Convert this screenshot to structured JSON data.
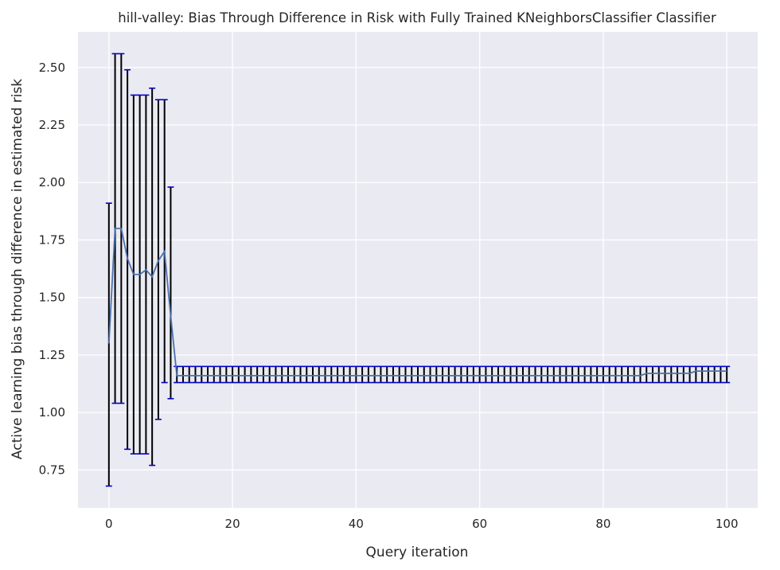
{
  "chart_data": {
    "type": "line",
    "title": "hill-valley: Bias Through Difference in Risk with Fully Trained KNeighborsClassifier Classifier",
    "xlabel": "Query iteration",
    "ylabel": "Active learning bias through difference in estimated risk",
    "xlim": [
      -5,
      105
    ],
    "ylim": [
      0.585,
      2.655
    ],
    "xticks": [
      0,
      20,
      40,
      60,
      80,
      100
    ],
    "xtick_labels": [
      "0",
      "20",
      "40",
      "60",
      "80",
      "100"
    ],
    "yticks": [
      0.75,
      1.0,
      1.25,
      1.5,
      1.75,
      2.0,
      2.25,
      2.5
    ],
    "ytick_labels": [
      "0.75",
      "1.00",
      "1.25",
      "1.50",
      "1.75",
      "2.00",
      "2.25",
      "2.50"
    ],
    "grid": true,
    "colors": {
      "background": "#eaeaf2",
      "grid": "#ffffff",
      "line": "#4c72b0",
      "errorbar": "#000000",
      "cap": "#0000cd"
    },
    "series": [
      {
        "x": [
          0,
          1,
          2,
          3,
          4,
          5,
          6,
          7,
          8,
          9,
          10,
          11,
          12,
          13,
          14,
          15,
          16,
          17,
          18,
          19,
          20,
          21,
          22,
          23,
          24,
          25,
          26,
          27,
          28,
          29,
          30,
          31,
          32,
          33,
          34,
          35,
          36,
          37,
          38,
          39,
          40,
          41,
          42,
          43,
          44,
          45,
          46,
          47,
          48,
          49,
          50,
          51,
          52,
          53,
          54,
          55,
          56,
          57,
          58,
          59,
          60,
          61,
          62,
          63,
          64,
          65,
          66,
          67,
          68,
          69,
          70,
          71,
          72,
          73,
          74,
          75,
          76,
          77,
          78,
          79,
          80,
          81,
          82,
          83,
          84,
          85,
          86,
          87,
          88,
          89,
          90,
          91,
          92,
          93,
          94,
          95,
          96,
          97,
          98,
          99,
          100
        ],
        "y": [
          1.3,
          1.8,
          1.8,
          1.67,
          1.6,
          1.6,
          1.62,
          1.59,
          1.66,
          1.7,
          1.42,
          1.16,
          1.16,
          1.16,
          1.16,
          1.16,
          1.16,
          1.16,
          1.16,
          1.16,
          1.16,
          1.16,
          1.16,
          1.16,
          1.16,
          1.16,
          1.16,
          1.16,
          1.16,
          1.16,
          1.16,
          1.16,
          1.16,
          1.16,
          1.16,
          1.16,
          1.16,
          1.16,
          1.16,
          1.16,
          1.16,
          1.16,
          1.16,
          1.16,
          1.16,
          1.16,
          1.16,
          1.16,
          1.16,
          1.16,
          1.16,
          1.16,
          1.16,
          1.16,
          1.16,
          1.16,
          1.16,
          1.16,
          1.16,
          1.16,
          1.16,
          1.16,
          1.16,
          1.16,
          1.16,
          1.16,
          1.16,
          1.16,
          1.16,
          1.16,
          1.16,
          1.16,
          1.16,
          1.16,
          1.16,
          1.16,
          1.16,
          1.16,
          1.16,
          1.16,
          1.16,
          1.16,
          1.16,
          1.16,
          1.16,
          1.16,
          1.16,
          1.17,
          1.17,
          1.17,
          1.17,
          1.17,
          1.17,
          1.17,
          1.17,
          1.18,
          1.18,
          1.18,
          1.18,
          1.18,
          1.18
        ],
        "yerr_low": [
          0.68,
          1.04,
          1.04,
          0.84,
          0.82,
          0.82,
          0.82,
          0.77,
          0.97,
          1.13,
          1.06,
          1.13,
          1.13,
          1.13,
          1.13,
          1.13,
          1.13,
          1.13,
          1.13,
          1.13,
          1.13,
          1.13,
          1.13,
          1.13,
          1.13,
          1.13,
          1.13,
          1.13,
          1.13,
          1.13,
          1.13,
          1.13,
          1.13,
          1.13,
          1.13,
          1.13,
          1.13,
          1.13,
          1.13,
          1.13,
          1.13,
          1.13,
          1.13,
          1.13,
          1.13,
          1.13,
          1.13,
          1.13,
          1.13,
          1.13,
          1.13,
          1.13,
          1.13,
          1.13,
          1.13,
          1.13,
          1.13,
          1.13,
          1.13,
          1.13,
          1.13,
          1.13,
          1.13,
          1.13,
          1.13,
          1.13,
          1.13,
          1.13,
          1.13,
          1.13,
          1.13,
          1.13,
          1.13,
          1.13,
          1.13,
          1.13,
          1.13,
          1.13,
          1.13,
          1.13,
          1.13,
          1.13,
          1.13,
          1.13,
          1.13,
          1.13,
          1.13,
          1.13,
          1.13,
          1.13,
          1.13,
          1.13,
          1.13,
          1.13,
          1.13,
          1.13,
          1.13,
          1.13,
          1.13,
          1.13,
          1.13
        ],
        "yerr_high": [
          1.91,
          2.56,
          2.56,
          2.49,
          2.38,
          2.38,
          2.38,
          2.41,
          2.36,
          2.36,
          1.98,
          1.2,
          1.2,
          1.2,
          1.2,
          1.2,
          1.2,
          1.2,
          1.2,
          1.2,
          1.2,
          1.2,
          1.2,
          1.2,
          1.2,
          1.2,
          1.2,
          1.2,
          1.2,
          1.2,
          1.2,
          1.2,
          1.2,
          1.2,
          1.2,
          1.2,
          1.2,
          1.2,
          1.2,
          1.2,
          1.2,
          1.2,
          1.2,
          1.2,
          1.2,
          1.2,
          1.2,
          1.2,
          1.2,
          1.2,
          1.2,
          1.2,
          1.2,
          1.2,
          1.2,
          1.2,
          1.2,
          1.2,
          1.2,
          1.2,
          1.2,
          1.2,
          1.2,
          1.2,
          1.2,
          1.2,
          1.2,
          1.2,
          1.2,
          1.2,
          1.2,
          1.2,
          1.2,
          1.2,
          1.2,
          1.2,
          1.2,
          1.2,
          1.2,
          1.2,
          1.2,
          1.2,
          1.2,
          1.2,
          1.2,
          1.2,
          1.2,
          1.2,
          1.2,
          1.2,
          1.2,
          1.2,
          1.2,
          1.2,
          1.2,
          1.2,
          1.2,
          1.2,
          1.2,
          1.2,
          1.2
        ]
      }
    ]
  }
}
